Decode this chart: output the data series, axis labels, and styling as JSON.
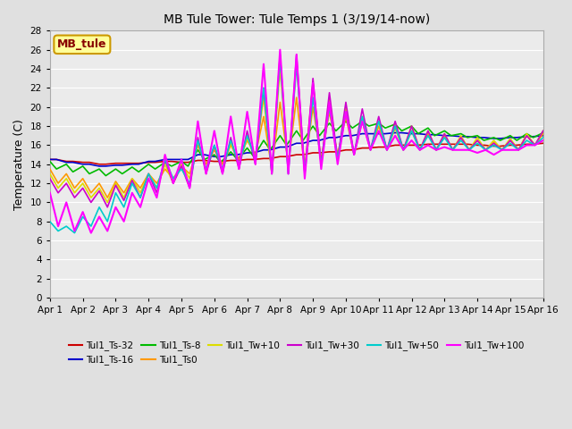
{
  "title": "MB Tule Tower: Tule Temps 1 (3/19/14-now)",
  "ylabel": "Temperature (C)",
  "xlim": [
    0,
    15
  ],
  "ylim": [
    0,
    28
  ],
  "yticks": [
    0,
    2,
    4,
    6,
    8,
    10,
    12,
    14,
    16,
    18,
    20,
    22,
    24,
    26,
    28
  ],
  "xtick_labels": [
    "Apr 1",
    "Apr 2",
    "Apr 3",
    "Apr 4",
    "Apr 5",
    "Apr 6",
    "Apr 7",
    "Apr 8",
    "Apr 9",
    "Apr 10",
    "Apr 11",
    "Apr 12",
    "Apr 13",
    "Apr 14",
    "Apr 15",
    "Apr 16"
  ],
  "legend_label": "MB_tule",
  "bg_color": "#e0e0e0",
  "plot_bg": "#ebebeb",
  "grid_color": "#ffffff",
  "legend_box_color": "#ffff99",
  "legend_box_edge": "#cc9900",
  "series": {
    "Tul1_Ts-32": {
      "color": "#cc0000",
      "lw": 1.2,
      "xs": [
        0,
        0.2,
        0.5,
        0.7,
        1,
        1.2,
        1.5,
        1.7,
        2,
        2.2,
        2.5,
        2.7,
        3,
        3.2,
        3.5,
        3.7,
        4,
        4.2,
        4.5,
        4.7,
        5,
        5.2,
        5.5,
        5.7,
        6,
        6.2,
        6.5,
        6.7,
        7,
        7.2,
        7.5,
        7.7,
        8,
        8.2,
        8.5,
        8.7,
        9,
        9.2,
        9.5,
        9.7,
        10,
        10.2,
        10.5,
        10.7,
        11,
        11.2,
        11.5,
        11.7,
        12,
        12.2,
        12.5,
        12.7,
        13,
        13.2,
        13.5,
        13.7,
        14,
        14.2,
        14.5,
        14.7,
        15
      ],
      "ys": [
        14.5,
        14.5,
        14.3,
        14.3,
        14.2,
        14.2,
        14.0,
        14.0,
        14.1,
        14.1,
        14.1,
        14.1,
        14.2,
        14.2,
        14.3,
        14.3,
        14.2,
        14.2,
        14.4,
        14.4,
        14.3,
        14.3,
        14.4,
        14.4,
        14.5,
        14.5,
        14.6,
        14.6,
        14.8,
        14.8,
        15.0,
        15.0,
        15.2,
        15.2,
        15.3,
        15.3,
        15.5,
        15.5,
        15.7,
        15.7,
        15.8,
        15.8,
        16.0,
        16.0,
        16.0,
        16.0,
        16.1,
        16.1,
        16.1,
        16.1,
        16.1,
        16.1,
        16.0,
        16.0,
        15.9,
        15.9,
        16.0,
        16.0,
        16.1,
        16.1,
        16.2
      ]
    },
    "Tul1_Ts-16": {
      "color": "#0000cc",
      "lw": 1.2,
      "xs": [
        0,
        0.2,
        0.5,
        0.7,
        1,
        1.2,
        1.5,
        1.7,
        2,
        2.2,
        2.5,
        2.7,
        3,
        3.2,
        3.5,
        3.7,
        4,
        4.2,
        4.5,
        4.7,
        5,
        5.2,
        5.5,
        5.7,
        6,
        6.2,
        6.5,
        6.7,
        7,
        7.2,
        7.5,
        7.7,
        8,
        8.2,
        8.5,
        8.7,
        9,
        9.2,
        9.5,
        9.7,
        10,
        10.2,
        10.5,
        10.7,
        11,
        11.2,
        11.5,
        11.7,
        12,
        12.2,
        12.5,
        12.7,
        13,
        13.2,
        13.5,
        13.7,
        14,
        14.2,
        14.5,
        14.7,
        15
      ],
      "ys": [
        14.5,
        14.5,
        14.2,
        14.2,
        14.0,
        14.0,
        13.8,
        13.8,
        13.9,
        13.9,
        14.0,
        14.0,
        14.3,
        14.3,
        14.5,
        14.5,
        14.5,
        14.5,
        15.0,
        15.0,
        14.8,
        14.8,
        15.0,
        15.0,
        15.2,
        15.2,
        15.5,
        15.5,
        15.8,
        15.8,
        16.2,
        16.2,
        16.5,
        16.5,
        16.8,
        16.8,
        17.0,
        17.0,
        17.2,
        17.2,
        17.2,
        17.2,
        17.3,
        17.3,
        17.2,
        17.2,
        17.1,
        17.1,
        17.0,
        17.0,
        16.9,
        16.9,
        16.8,
        16.8,
        16.7,
        16.7,
        16.8,
        16.8,
        16.9,
        16.9,
        17.0
      ]
    },
    "Tul1_Ts-8": {
      "color": "#00bb00",
      "lw": 1.2,
      "xs": [
        0,
        0.2,
        0.5,
        0.7,
        1,
        1.2,
        1.5,
        1.7,
        2,
        2.2,
        2.5,
        2.7,
        3,
        3.2,
        3.5,
        3.7,
        4,
        4.2,
        4.5,
        4.7,
        5,
        5.2,
        5.5,
        5.7,
        6,
        6.2,
        6.5,
        6.7,
        7,
        7.2,
        7.5,
        7.7,
        8,
        8.2,
        8.5,
        8.7,
        9,
        9.2,
        9.5,
        9.7,
        10,
        10.2,
        10.5,
        10.7,
        11,
        11.2,
        11.5,
        11.7,
        12,
        12.2,
        12.5,
        12.7,
        13,
        13.2,
        13.5,
        13.7,
        14,
        14.2,
        14.5,
        14.7,
        15
      ],
      "ys": [
        14.3,
        13.5,
        14.0,
        13.2,
        13.8,
        13.0,
        13.5,
        12.8,
        13.5,
        13.0,
        13.7,
        13.2,
        14.0,
        13.5,
        14.2,
        13.8,
        14.3,
        13.8,
        15.5,
        14.5,
        15.0,
        14.2,
        15.3,
        14.5,
        15.7,
        14.8,
        16.5,
        15.5,
        17.0,
        16.0,
        17.5,
        16.5,
        18.0,
        17.0,
        18.3,
        17.5,
        18.5,
        17.8,
        18.5,
        18.0,
        18.3,
        17.8,
        18.2,
        17.5,
        18.0,
        17.2,
        17.8,
        17.0,
        17.5,
        17.0,
        17.2,
        16.8,
        17.0,
        16.5,
        16.8,
        16.5,
        17.0,
        16.5,
        17.2,
        16.8,
        17.3
      ]
    },
    "Tul1_Ts0": {
      "color": "#ff9900",
      "lw": 1.2,
      "xs": [
        0,
        0.25,
        0.5,
        0.75,
        1,
        1.25,
        1.5,
        1.75,
        2,
        2.25,
        2.5,
        2.75,
        3,
        3.25,
        3.5,
        3.75,
        4,
        4.25,
        4.5,
        4.75,
        5,
        5.25,
        5.5,
        5.75,
        6,
        6.25,
        6.5,
        6.75,
        7,
        7.25,
        7.5,
        7.75,
        8,
        8.25,
        8.5,
        8.75,
        9,
        9.25,
        9.5,
        9.75,
        10,
        10.25,
        10.5,
        10.75,
        11,
        11.25,
        11.5,
        11.75,
        12,
        12.25,
        12.5,
        12.75,
        13,
        13.25,
        13.5,
        13.75,
        14,
        14.25,
        14.5,
        14.75,
        15
      ],
      "ys": [
        13.5,
        12.0,
        13.0,
        11.5,
        12.5,
        11.0,
        12.0,
        10.5,
        12.2,
        11.0,
        12.5,
        11.5,
        13.0,
        12.0,
        13.5,
        12.5,
        13.8,
        13.0,
        16.0,
        14.0,
        15.5,
        14.0,
        16.0,
        14.5,
        16.5,
        15.0,
        19.0,
        13.5,
        20.5,
        14.0,
        21.0,
        13.5,
        20.0,
        14.5,
        19.5,
        15.0,
        19.0,
        15.0,
        18.5,
        15.5,
        18.0,
        15.5,
        17.8,
        15.5,
        17.5,
        15.5,
        17.2,
        15.5,
        17.0,
        15.5,
        16.8,
        15.5,
        16.5,
        15.5,
        16.3,
        15.5,
        16.5,
        15.5,
        17.0,
        16.0,
        17.2
      ]
    },
    "Tul1_Tw+10": {
      "color": "#dddd00",
      "lw": 1.2,
      "xs": [
        0,
        0.25,
        0.5,
        0.75,
        1,
        1.25,
        1.5,
        1.75,
        2,
        2.25,
        2.5,
        2.75,
        3,
        3.25,
        3.5,
        3.75,
        4,
        4.25,
        4.5,
        4.75,
        5,
        5.25,
        5.5,
        5.75,
        6,
        6.25,
        6.5,
        6.75,
        7,
        7.25,
        7.5,
        7.75,
        8,
        8.25,
        8.5,
        8.75,
        9,
        9.25,
        9.5,
        9.75,
        10,
        10.25,
        10.5,
        10.75,
        11,
        11.25,
        11.5,
        11.75,
        12,
        12.25,
        12.5,
        12.75,
        13,
        13.25,
        13.5,
        13.75,
        14,
        14.25,
        14.5,
        14.75,
        15
      ],
      "ys": [
        13.0,
        11.5,
        12.5,
        11.0,
        12.0,
        10.5,
        11.5,
        10.0,
        12.0,
        10.5,
        12.5,
        11.0,
        13.0,
        11.5,
        14.0,
        12.0,
        14.0,
        12.5,
        16.5,
        13.5,
        15.8,
        13.5,
        16.2,
        14.0,
        16.8,
        14.5,
        21.0,
        13.0,
        24.0,
        13.5,
        24.5,
        13.5,
        22.5,
        14.0,
        21.0,
        14.5,
        20.0,
        15.0,
        19.0,
        15.5,
        18.5,
        15.5,
        18.3,
        15.5,
        18.0,
        15.5,
        17.5,
        15.5,
        17.2,
        15.5,
        17.0,
        15.5,
        16.8,
        15.5,
        16.5,
        15.5,
        16.7,
        15.5,
        17.2,
        16.0,
        17.5
      ]
    },
    "Tul1_Tw+30": {
      "color": "#cc00cc",
      "lw": 1.2,
      "xs": [
        0,
        0.25,
        0.5,
        0.75,
        1,
        1.25,
        1.5,
        1.75,
        2,
        2.25,
        2.5,
        2.75,
        3,
        3.25,
        3.5,
        3.75,
        4,
        4.25,
        4.5,
        4.75,
        5,
        5.25,
        5.5,
        5.75,
        6,
        6.25,
        6.5,
        6.75,
        7,
        7.25,
        7.5,
        7.75,
        8,
        8.25,
        8.5,
        8.75,
        9,
        9.25,
        9.5,
        9.75,
        10,
        10.25,
        10.5,
        10.75,
        11,
        11.25,
        11.5,
        11.75,
        12,
        12.25,
        12.5,
        12.75,
        13,
        13.25,
        13.5,
        13.75,
        14,
        14.25,
        14.5,
        14.75,
        15
      ],
      "ys": [
        12.5,
        11.0,
        12.0,
        10.5,
        11.5,
        10.0,
        11.2,
        9.5,
        11.8,
        10.2,
        12.3,
        10.5,
        13.0,
        11.0,
        14.5,
        12.0,
        13.8,
        11.5,
        16.8,
        13.0,
        16.0,
        13.0,
        16.8,
        13.5,
        17.5,
        14.0,
        22.0,
        13.0,
        25.5,
        13.0,
        25.5,
        13.0,
        23.0,
        14.0,
        21.5,
        14.5,
        20.5,
        15.0,
        19.8,
        15.5,
        19.0,
        15.5,
        18.5,
        15.5,
        18.0,
        15.5,
        17.5,
        15.5,
        17.2,
        15.5,
        16.8,
        15.5,
        16.5,
        15.5,
        16.2,
        15.5,
        16.5,
        15.5,
        17.0,
        16.0,
        17.5
      ]
    },
    "Tul1_Tw+50": {
      "color": "#00cccc",
      "lw": 1.2,
      "xs": [
        0,
        0.25,
        0.5,
        0.75,
        1,
        1.25,
        1.5,
        1.75,
        2,
        2.25,
        2.5,
        2.75,
        3,
        3.25,
        3.5,
        3.75,
        4,
        4.25,
        4.5,
        4.75,
        5,
        5.25,
        5.5,
        5.75,
        6,
        6.25,
        6.5,
        6.75,
        7,
        7.25,
        7.5,
        7.75,
        8,
        8.25,
        8.5,
        8.75,
        9,
        9.25,
        9.5,
        9.75,
        10,
        10.25,
        10.5,
        10.75,
        11,
        11.25,
        11.5,
        11.75,
        12,
        12.25,
        12.5,
        12.75,
        13,
        13.25,
        13.5,
        13.75,
        14,
        14.25,
        14.5,
        14.75,
        15
      ],
      "ys": [
        8.0,
        7.0,
        7.5,
        6.8,
        8.5,
        7.5,
        9.5,
        8.0,
        11.0,
        9.5,
        12.0,
        10.5,
        13.0,
        11.5,
        14.5,
        12.5,
        13.5,
        12.0,
        16.5,
        13.5,
        16.0,
        13.5,
        16.5,
        14.0,
        17.0,
        14.5,
        22.0,
        13.0,
        25.0,
        13.0,
        24.5,
        13.0,
        21.0,
        14.0,
        20.0,
        14.5,
        19.5,
        15.0,
        19.0,
        15.5,
        18.5,
        15.5,
        18.0,
        15.5,
        17.5,
        15.5,
        17.0,
        15.5,
        16.8,
        15.5,
        16.5,
        15.5,
        16.2,
        15.5,
        16.0,
        15.5,
        16.2,
        15.5,
        16.5,
        16.0,
        16.8
      ]
    },
    "Tul1_Tw+100": {
      "color": "#ff00ff",
      "lw": 1.5,
      "xs": [
        0,
        0.25,
        0.5,
        0.75,
        1,
        1.25,
        1.5,
        1.75,
        2,
        2.25,
        2.5,
        2.75,
        3,
        3.25,
        3.5,
        3.75,
        4,
        4.25,
        4.5,
        4.75,
        5,
        5.25,
        5.5,
        5.75,
        6,
        6.25,
        6.5,
        6.75,
        7,
        7.25,
        7.5,
        7.75,
        8,
        8.25,
        8.5,
        8.75,
        9,
        9.25,
        9.5,
        9.75,
        10,
        10.25,
        10.5,
        10.75,
        11,
        11.25,
        11.5,
        11.75,
        12,
        12.25,
        12.5,
        12.75,
        13,
        13.25,
        13.5,
        13.75,
        14,
        14.25,
        14.5,
        14.75,
        15
      ],
      "ys": [
        11.0,
        7.5,
        10.0,
        7.0,
        9.0,
        6.8,
        8.5,
        7.0,
        9.5,
        8.0,
        11.0,
        9.5,
        12.5,
        10.5,
        15.0,
        12.0,
        14.5,
        11.5,
        18.5,
        13.0,
        17.5,
        13.0,
        19.0,
        13.5,
        19.5,
        14.0,
        24.5,
        13.0,
        26.0,
        13.0,
        25.5,
        12.5,
        22.5,
        13.5,
        20.5,
        14.0,
        19.5,
        15.0,
        18.5,
        15.5,
        17.5,
        15.5,
        17.0,
        15.5,
        16.5,
        15.5,
        16.0,
        15.5,
        15.8,
        15.5,
        15.5,
        15.5,
        15.2,
        15.5,
        15.0,
        15.5,
        15.5,
        15.5,
        16.0,
        16.0,
        16.5
      ]
    }
  }
}
